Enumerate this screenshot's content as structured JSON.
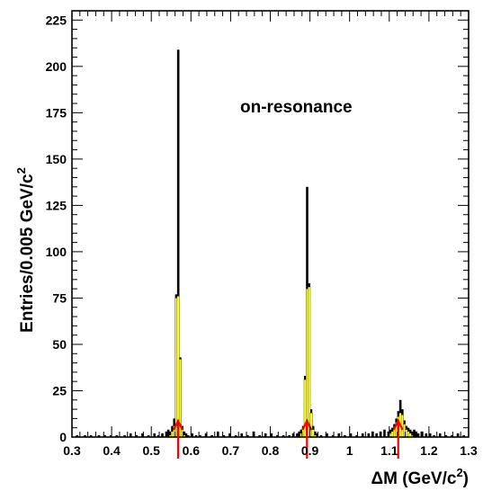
{
  "chart_data": {
    "type": "histogram",
    "annotation": "on-resonance",
    "xlabel_prefix": "ΔM (GeV/c",
    "xlabel_sup": "2",
    "xlabel_suffix": ")",
    "ylabel_prefix": "Entries/0.005 GeV/c",
    "ylabel_sup": "2",
    "xlim": [
      0.3,
      1.3
    ],
    "ylim": [
      0,
      230
    ],
    "bin_width": 0.005,
    "x_ticks": [
      "0.3",
      "0.4",
      "0.5",
      "0.6",
      "0.7",
      "0.8",
      "0.9",
      "1",
      "1.1",
      "1.2",
      "1.3"
    ],
    "x_tick_values": [
      0.3,
      0.4,
      0.5,
      0.6,
      0.7,
      0.8,
      0.9,
      1.0,
      1.1,
      1.2,
      1.3
    ],
    "y_ticks": [
      "0",
      "25",
      "50",
      "75",
      "100",
      "125",
      "150",
      "175",
      "200",
      "225"
    ],
    "y_tick_values": [
      0,
      25,
      50,
      75,
      100,
      125,
      150,
      175,
      200,
      225
    ],
    "series": [
      {
        "role": "total",
        "color": "#000000",
        "bins": [
          [
            0.31,
            1
          ],
          [
            0.33,
            1
          ],
          [
            0.345,
            1
          ],
          [
            0.365,
            1
          ],
          [
            0.38,
            1
          ],
          [
            0.395,
            1
          ],
          [
            0.41,
            1
          ],
          [
            0.43,
            1
          ],
          [
            0.445,
            2
          ],
          [
            0.46,
            1
          ],
          [
            0.475,
            2
          ],
          [
            0.49,
            1
          ],
          [
            0.505,
            2
          ],
          [
            0.515,
            1
          ],
          [
            0.525,
            2
          ],
          [
            0.535,
            3
          ],
          [
            0.54,
            4
          ],
          [
            0.545,
            3
          ],
          [
            0.55,
            6
          ],
          [
            0.555,
            10
          ],
          [
            0.56,
            77
          ],
          [
            0.565,
            209
          ],
          [
            0.57,
            43
          ],
          [
            0.575,
            6
          ],
          [
            0.58,
            3
          ],
          [
            0.585,
            2
          ],
          [
            0.59,
            1
          ],
          [
            0.6,
            2
          ],
          [
            0.61,
            1
          ],
          [
            0.62,
            1
          ],
          [
            0.635,
            2
          ],
          [
            0.65,
            1
          ],
          [
            0.665,
            3
          ],
          [
            0.68,
            1
          ],
          [
            0.695,
            2
          ],
          [
            0.71,
            1
          ],
          [
            0.725,
            2
          ],
          [
            0.74,
            1
          ],
          [
            0.755,
            3
          ],
          [
            0.77,
            1
          ],
          [
            0.785,
            2
          ],
          [
            0.8,
            2
          ],
          [
            0.815,
            1
          ],
          [
            0.83,
            1
          ],
          [
            0.845,
            1
          ],
          [
            0.855,
            2
          ],
          [
            0.865,
            2
          ],
          [
            0.87,
            3
          ],
          [
            0.875,
            4
          ],
          [
            0.88,
            6
          ],
          [
            0.885,
            33
          ],
          [
            0.89,
            135
          ],
          [
            0.895,
            83
          ],
          [
            0.9,
            15
          ],
          [
            0.905,
            6
          ],
          [
            0.91,
            3
          ],
          [
            0.915,
            2
          ],
          [
            0.925,
            1
          ],
          [
            0.94,
            2
          ],
          [
            0.955,
            1
          ],
          [
            0.97,
            2
          ],
          [
            0.985,
            1
          ],
          [
            1.0,
            2
          ],
          [
            1.015,
            1
          ],
          [
            1.03,
            2
          ],
          [
            1.045,
            2
          ],
          [
            1.055,
            3
          ],
          [
            1.065,
            2
          ],
          [
            1.075,
            3
          ],
          [
            1.085,
            4
          ],
          [
            1.095,
            3
          ],
          [
            1.1,
            4
          ],
          [
            1.105,
            5
          ],
          [
            1.11,
            7
          ],
          [
            1.115,
            10
          ],
          [
            1.12,
            14
          ],
          [
            1.125,
            20
          ],
          [
            1.13,
            15
          ],
          [
            1.135,
            9
          ],
          [
            1.14,
            6
          ],
          [
            1.145,
            5
          ],
          [
            1.15,
            4
          ],
          [
            1.155,
            3
          ],
          [
            1.16,
            4
          ],
          [
            1.165,
            3
          ],
          [
            1.17,
            2
          ],
          [
            1.18,
            3
          ],
          [
            1.19,
            2
          ],
          [
            1.2,
            2
          ],
          [
            1.21,
            1
          ],
          [
            1.225,
            2
          ],
          [
            1.24,
            1
          ],
          [
            1.255,
            1
          ],
          [
            1.27,
            2
          ],
          [
            1.285,
            1
          ]
        ]
      },
      {
        "role": "signal",
        "color": "#ffff33",
        "bins": [
          [
            0.545,
            1
          ],
          [
            0.55,
            3
          ],
          [
            0.555,
            6
          ],
          [
            0.56,
            75
          ],
          [
            0.565,
            76
          ],
          [
            0.57,
            42
          ],
          [
            0.575,
            4
          ],
          [
            0.58,
            1
          ],
          [
            0.875,
            2
          ],
          [
            0.88,
            4
          ],
          [
            0.885,
            31
          ],
          [
            0.89,
            80
          ],
          [
            0.895,
            81
          ],
          [
            0.9,
            13
          ],
          [
            0.905,
            4
          ],
          [
            0.91,
            1
          ],
          [
            1.1,
            2
          ],
          [
            1.105,
            3
          ],
          [
            1.11,
            5
          ],
          [
            1.115,
            8
          ],
          [
            1.12,
            11
          ],
          [
            1.125,
            13
          ],
          [
            1.13,
            12
          ],
          [
            1.135,
            7
          ],
          [
            1.14,
            4
          ],
          [
            1.145,
            3
          ],
          [
            1.15,
            2
          ],
          [
            1.155,
            1
          ]
        ]
      }
    ],
    "markers": [
      {
        "x": 0.5675,
        "color": "#ff0000"
      },
      {
        "x": 0.8925,
        "color": "#ff0000"
      },
      {
        "x": 1.1225,
        "color": "#ff0000"
      }
    ]
  }
}
